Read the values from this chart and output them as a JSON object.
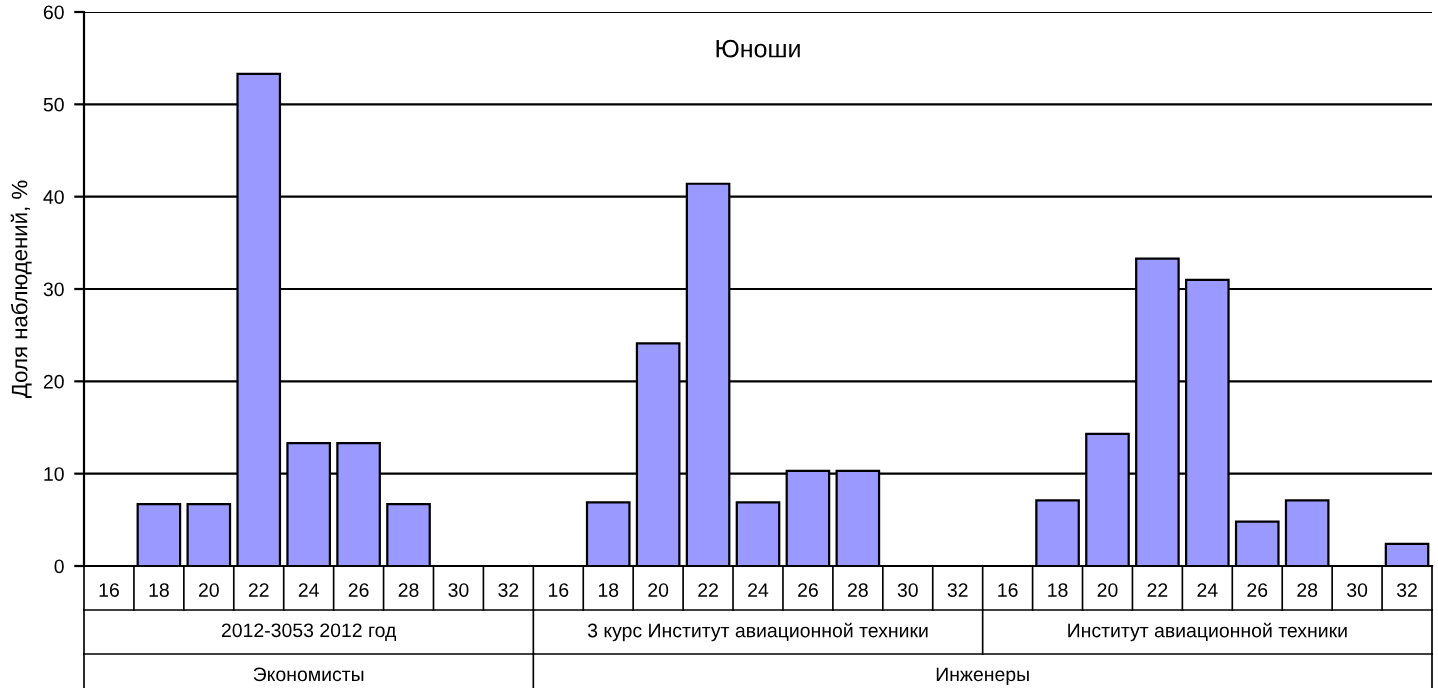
{
  "chart_data": {
    "type": "bar",
    "title": "Юноши",
    "ylabel": "Доля наблюдений, %",
    "categories": [
      "16",
      "18",
      "20",
      "22",
      "24",
      "26",
      "28",
      "30",
      "32",
      "16",
      "18",
      "20",
      "22",
      "24",
      "26",
      "28",
      "30",
      "32",
      "16",
      "18",
      "20",
      "22",
      "24",
      "26",
      "28",
      "30",
      "32"
    ],
    "values": [
      0,
      6.7,
      6.7,
      53.3,
      13.3,
      13.3,
      6.7,
      0,
      0,
      0,
      6.9,
      24.1,
      41.4,
      6.9,
      10.3,
      10.3,
      0,
      0,
      0,
      7.1,
      14.3,
      33.3,
      31.0,
      4.8,
      7.1,
      0,
      2.4
    ],
    "color": "#9999ff",
    "annotations": [
      "2012-3053 2012 год",
      "3 курс Институт авиационной техники",
      "Институт авиационной техники",
      "Экономисты",
      "Инженеры"
    ],
    "ylim": [
      0,
      60
    ],
    "yticks": [
      0,
      10,
      20,
      30,
      40,
      50,
      60
    ],
    "grid": "y",
    "legend": false
  }
}
